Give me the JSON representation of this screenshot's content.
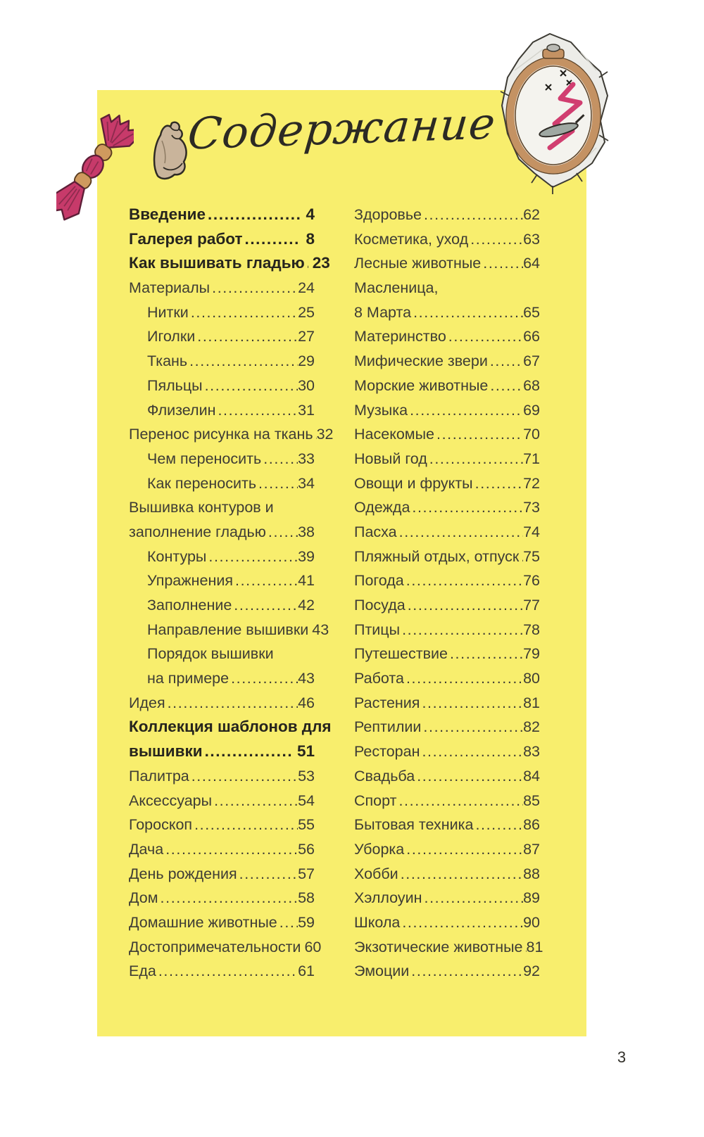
{
  "title": "Содержание",
  "page_number": "3",
  "colors": {
    "sheet_yellow": "#f8ee6d",
    "text_regular": "#3e3c35",
    "text_bold": "#26241e",
    "floss_pink": "#c73a6a",
    "wood_tan": "#c49263",
    "fabric_gray": "#ecece8"
  },
  "icons": {
    "thread_tassel": "thread-tassel-icon",
    "flexed_biceps": "flexed-biceps-icon",
    "embroidery_hoop": "embroidery-hoop-icon"
  },
  "toc": {
    "left": [
      {
        "label": "Введение",
        "page": "4",
        "bold": true
      },
      {
        "label": "Галерея работ",
        "page": "8",
        "bold": true
      },
      {
        "label": "Как вышивать гладью",
        "page": "23",
        "bold": true
      },
      {
        "label": "Материалы",
        "page": "24"
      },
      {
        "label": "Нитки",
        "page": "25",
        "indent": 1
      },
      {
        "label": "Иголки",
        "page": "27",
        "indent": 1
      },
      {
        "label": "Ткань",
        "page": "29",
        "indent": 1
      },
      {
        "label": "Пяльцы",
        "page": "30",
        "indent": 1
      },
      {
        "label": "Флизелин",
        "page": "31",
        "indent": 1
      },
      {
        "label": "Перенос рисунка на ткань",
        "page": "32"
      },
      {
        "label": "Чем переносить",
        "page": "33",
        "indent": 1
      },
      {
        "label": "Как переносить",
        "page": "34",
        "indent": 1
      },
      {
        "label": "Вышивка контуров и",
        "page": ""
      },
      {
        "label": "заполнение гладью",
        "page": "38"
      },
      {
        "label": "Контуры",
        "page": "39",
        "indent": 1
      },
      {
        "label": "Упражнения",
        "page": "41",
        "indent": 1
      },
      {
        "label": "Заполнение",
        "page": "42",
        "indent": 1
      },
      {
        "label": "Направление вышивки",
        "page": "43",
        "indent": 1
      },
      {
        "label": "Порядок вышивки",
        "page": "",
        "indent": 1
      },
      {
        "label": "на примере",
        "page": "43",
        "indent": 1
      },
      {
        "label": "Идея",
        "page": "46"
      },
      {
        "label": "Коллекция шаблонов для",
        "page": "",
        "bold": true
      },
      {
        "label": "вышивки",
        "page": "51",
        "bold": true
      },
      {
        "label": "Палитра",
        "page": "53"
      },
      {
        "label": "Аксессуары",
        "page": "54"
      },
      {
        "label": "Гороскоп",
        "page": "55"
      },
      {
        "label": "Дача",
        "page": "56"
      },
      {
        "label": "День рождения",
        "page": "57"
      },
      {
        "label": "Дом",
        "page": "58"
      },
      {
        "label": "Домашние животные",
        "page": "59"
      },
      {
        "label": "Достопримечательности",
        "page": "60"
      },
      {
        "label": "Еда",
        "page": "61"
      }
    ],
    "right": [
      {
        "label": "Здоровье",
        "page": "62"
      },
      {
        "label": "Косметика, уход",
        "page": "63"
      },
      {
        "label": "Лесные животные",
        "page": "64"
      },
      {
        "label": "Масленица,",
        "page": ""
      },
      {
        "label": "8 Марта",
        "page": "65"
      },
      {
        "label": "Материнство",
        "page": "66"
      },
      {
        "label": "Мифические звери",
        "page": "67"
      },
      {
        "label": "Морские животные",
        "page": "68"
      },
      {
        "label": "Музыка",
        "page": "69"
      },
      {
        "label": "Насекомые",
        "page": "70"
      },
      {
        "label": "Новый год",
        "page": "71"
      },
      {
        "label": "Овощи и фрукты",
        "page": "72"
      },
      {
        "label": "Одежда",
        "page": "73"
      },
      {
        "label": "Пасха",
        "page": "74"
      },
      {
        "label": "Пляжный отдых, отпуск",
        "page": "75"
      },
      {
        "label": "Погода",
        "page": "76"
      },
      {
        "label": "Посуда",
        "page": "77"
      },
      {
        "label": "Птицы",
        "page": "78"
      },
      {
        "label": "Путешествие",
        "page": "79"
      },
      {
        "label": "Работа",
        "page": "80"
      },
      {
        "label": "Растения",
        "page": "81"
      },
      {
        "label": "Рептилии",
        "page": "82"
      },
      {
        "label": "Ресторан",
        "page": "83"
      },
      {
        "label": "Свадьба",
        "page": "84"
      },
      {
        "label": "Спорт",
        "page": "85"
      },
      {
        "label": "Бытовая техника",
        "page": "86"
      },
      {
        "label": "Уборка",
        "page": "87"
      },
      {
        "label": "Хобби",
        "page": "88"
      },
      {
        "label": "Хэллоуин",
        "page": "89"
      },
      {
        "label": "Школа",
        "page": "90"
      },
      {
        "label": "Экзотические животные",
        "page": "81"
      },
      {
        "label": "Эмоции",
        "page": "92"
      }
    ]
  }
}
